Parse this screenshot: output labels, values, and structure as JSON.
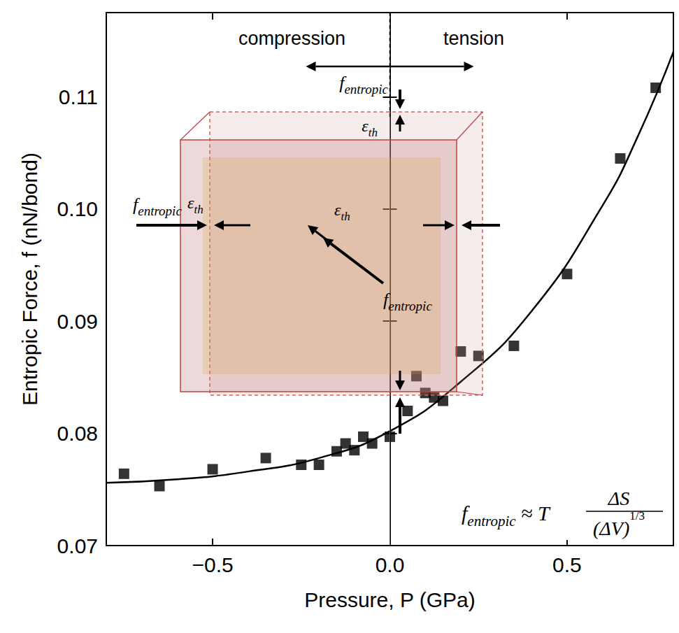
{
  "chart_data": {
    "type": "scatter",
    "xlabel": "Pressure, P (GPa)",
    "ylabel": "Entropic Force, f (nN/bond)",
    "xlim": [
      -0.8,
      0.8
    ],
    "xticks": [
      {
        "value": -0.5,
        "label": "−0.5"
      },
      {
        "value": 0,
        "label": "0.0"
      },
      0.5
    ],
    "ylim": [
      0.07,
      0.1175
    ],
    "yticks": [
      0.07,
      0.08,
      0.09,
      {
        "value": 0.1,
        "label": "0.10"
      },
      0.11
    ],
    "grid": false,
    "series": [
      {
        "type": "scatter",
        "marker": "square",
        "color": "#000000",
        "x": [
          -0.75,
          -0.65,
          -0.5,
          -0.35,
          -0.25,
          -0.2,
          -0.15,
          -0.125,
          -0.1,
          -0.075,
          -0.05,
          0.0,
          0.05,
          0.075,
          0.1,
          0.125,
          0.15,
          0.2,
          0.25,
          0.35,
          0.5,
          0.65,
          0.75
        ],
        "values": [
          0.0764,
          0.0753,
          0.0768,
          0.0778,
          0.0772,
          0.0772,
          0.0784,
          0.0791,
          0.0785,
          0.0797,
          0.0791,
          0.0797,
          0.082,
          0.0851,
          0.0836,
          0.0832,
          0.0829,
          0.0873,
          0.0869,
          0.0878,
          0.0942,
          0.1045,
          0.1108
        ]
      },
      {
        "type": "line",
        "line_style": "solid",
        "color": "#000000",
        "x": [
          -0.8,
          -0.6,
          -0.4,
          -0.2,
          0.0,
          0.2,
          0.4,
          0.6,
          0.7,
          0.8
        ],
        "values": [
          0.0756,
          0.0759,
          0.0766,
          0.0778,
          0.0802,
          0.0846,
          0.0909,
          0.1003,
          0.1065,
          0.114
        ]
      }
    ],
    "regions": {
      "x": 0,
      "left": "compression",
      "right": "tension"
    },
    "annotations": {
      "force_symbol": {
        "base": "f",
        "subscript": "entropic"
      },
      "strain_symbol": {
        "base": "ε",
        "subscript": "th"
      },
      "formula": {
        "relation": "≈",
        "factor": "T",
        "numerator": "ΔS",
        "denominator": "(ΔV)",
        "exponent": "1/3"
      }
    }
  }
}
